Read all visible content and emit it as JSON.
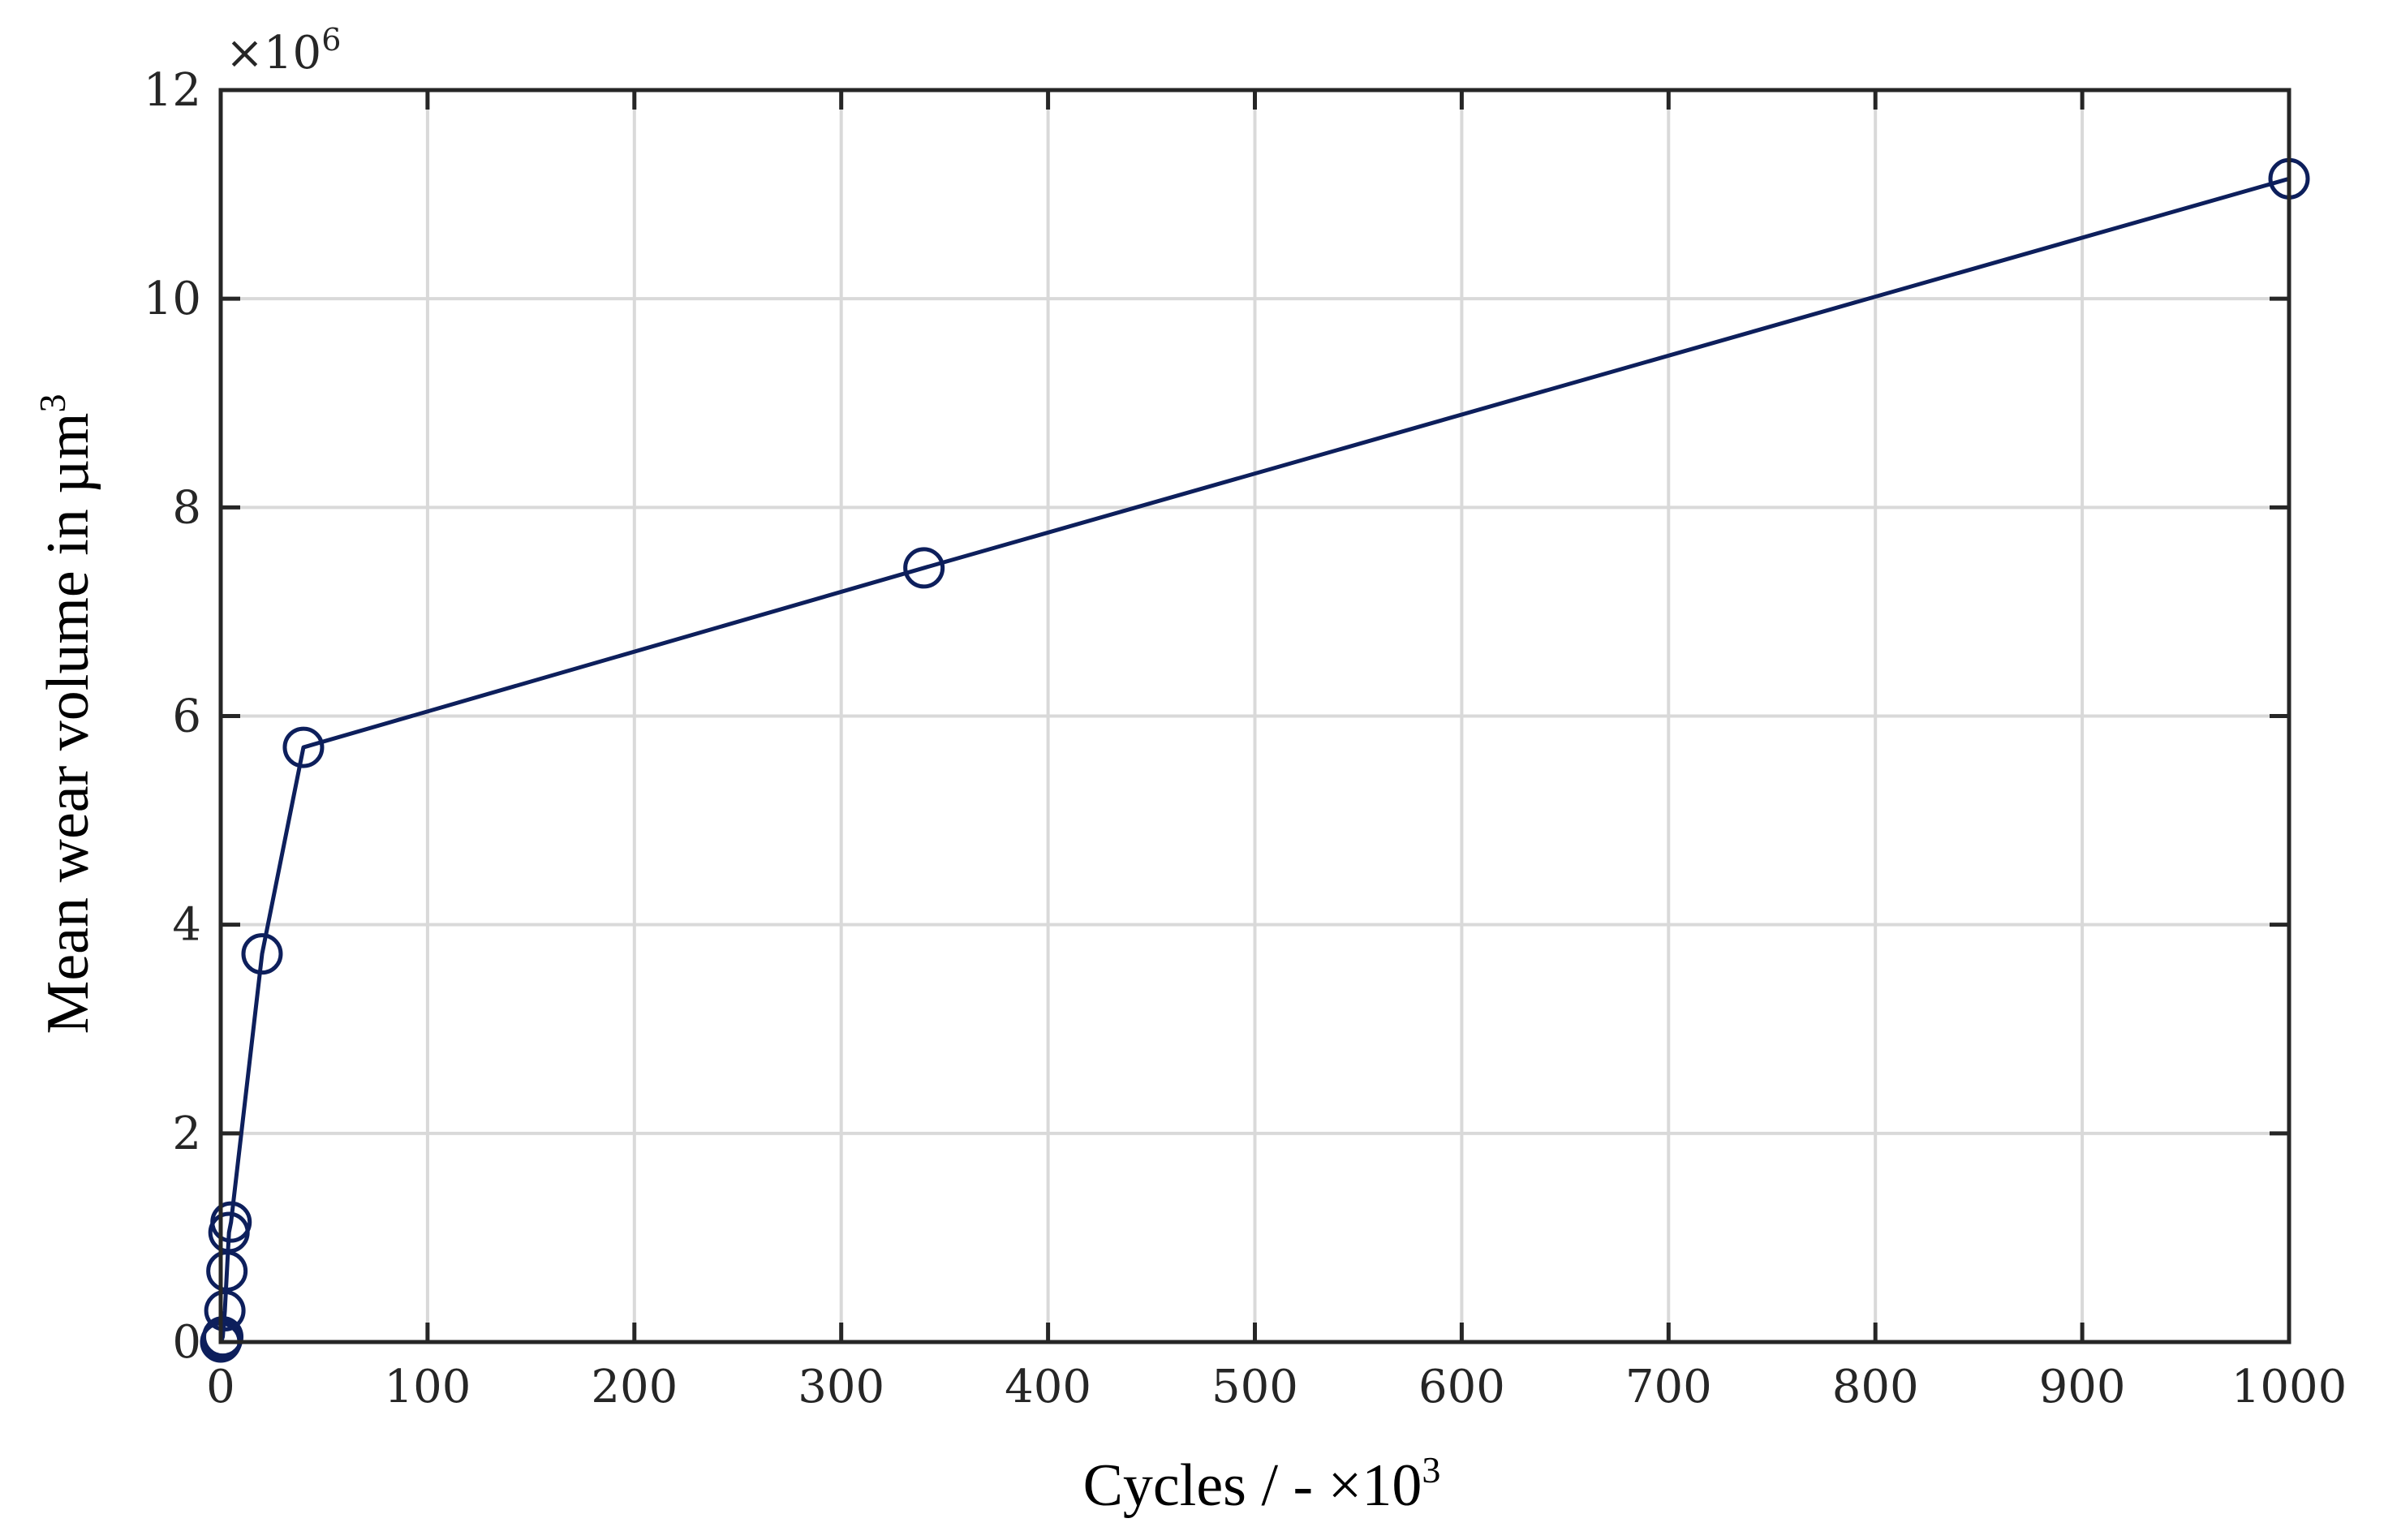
{
  "chart_data": {
    "type": "line",
    "title": "",
    "xlabel": "Cycles / - ×10",
    "xlabel_sup": "3",
    "ylabel": "Mean wear volume in µm",
    "ylabel_sup": "3",
    "y_multiplier": "×10",
    "y_multiplier_sup": "6",
    "xlim": [
      0,
      1000
    ],
    "ylim": [
      0,
      12
    ],
    "xticks": [
      0,
      100,
      200,
      300,
      400,
      500,
      600,
      700,
      800,
      900,
      1000
    ],
    "yticks": [
      0,
      2,
      4,
      6,
      8,
      10,
      12
    ],
    "xtick_labels": [
      "0",
      "100",
      "200",
      "300",
      "400",
      "500",
      "600",
      "700",
      "800",
      "900",
      "1000"
    ],
    "ytick_labels": [
      "0",
      "2",
      "4",
      "6",
      "8",
      "10",
      "12"
    ],
    "grid": true,
    "series": [
      {
        "color": "#0d1f5c",
        "marker": "open-circle",
        "x": [
          0,
          0.5,
          1,
          2,
          3,
          4,
          5,
          20,
          40,
          340,
          1000
        ],
        "y": [
          0,
          0.02,
          0.05,
          0.3,
          0.68,
          1.05,
          1.15,
          3.72,
          5.7,
          7.42,
          11.15
        ]
      }
    ],
    "colors": {
      "line": "#0d1f5c",
      "grid": "#d9d9d9",
      "axis": "#262626"
    }
  }
}
